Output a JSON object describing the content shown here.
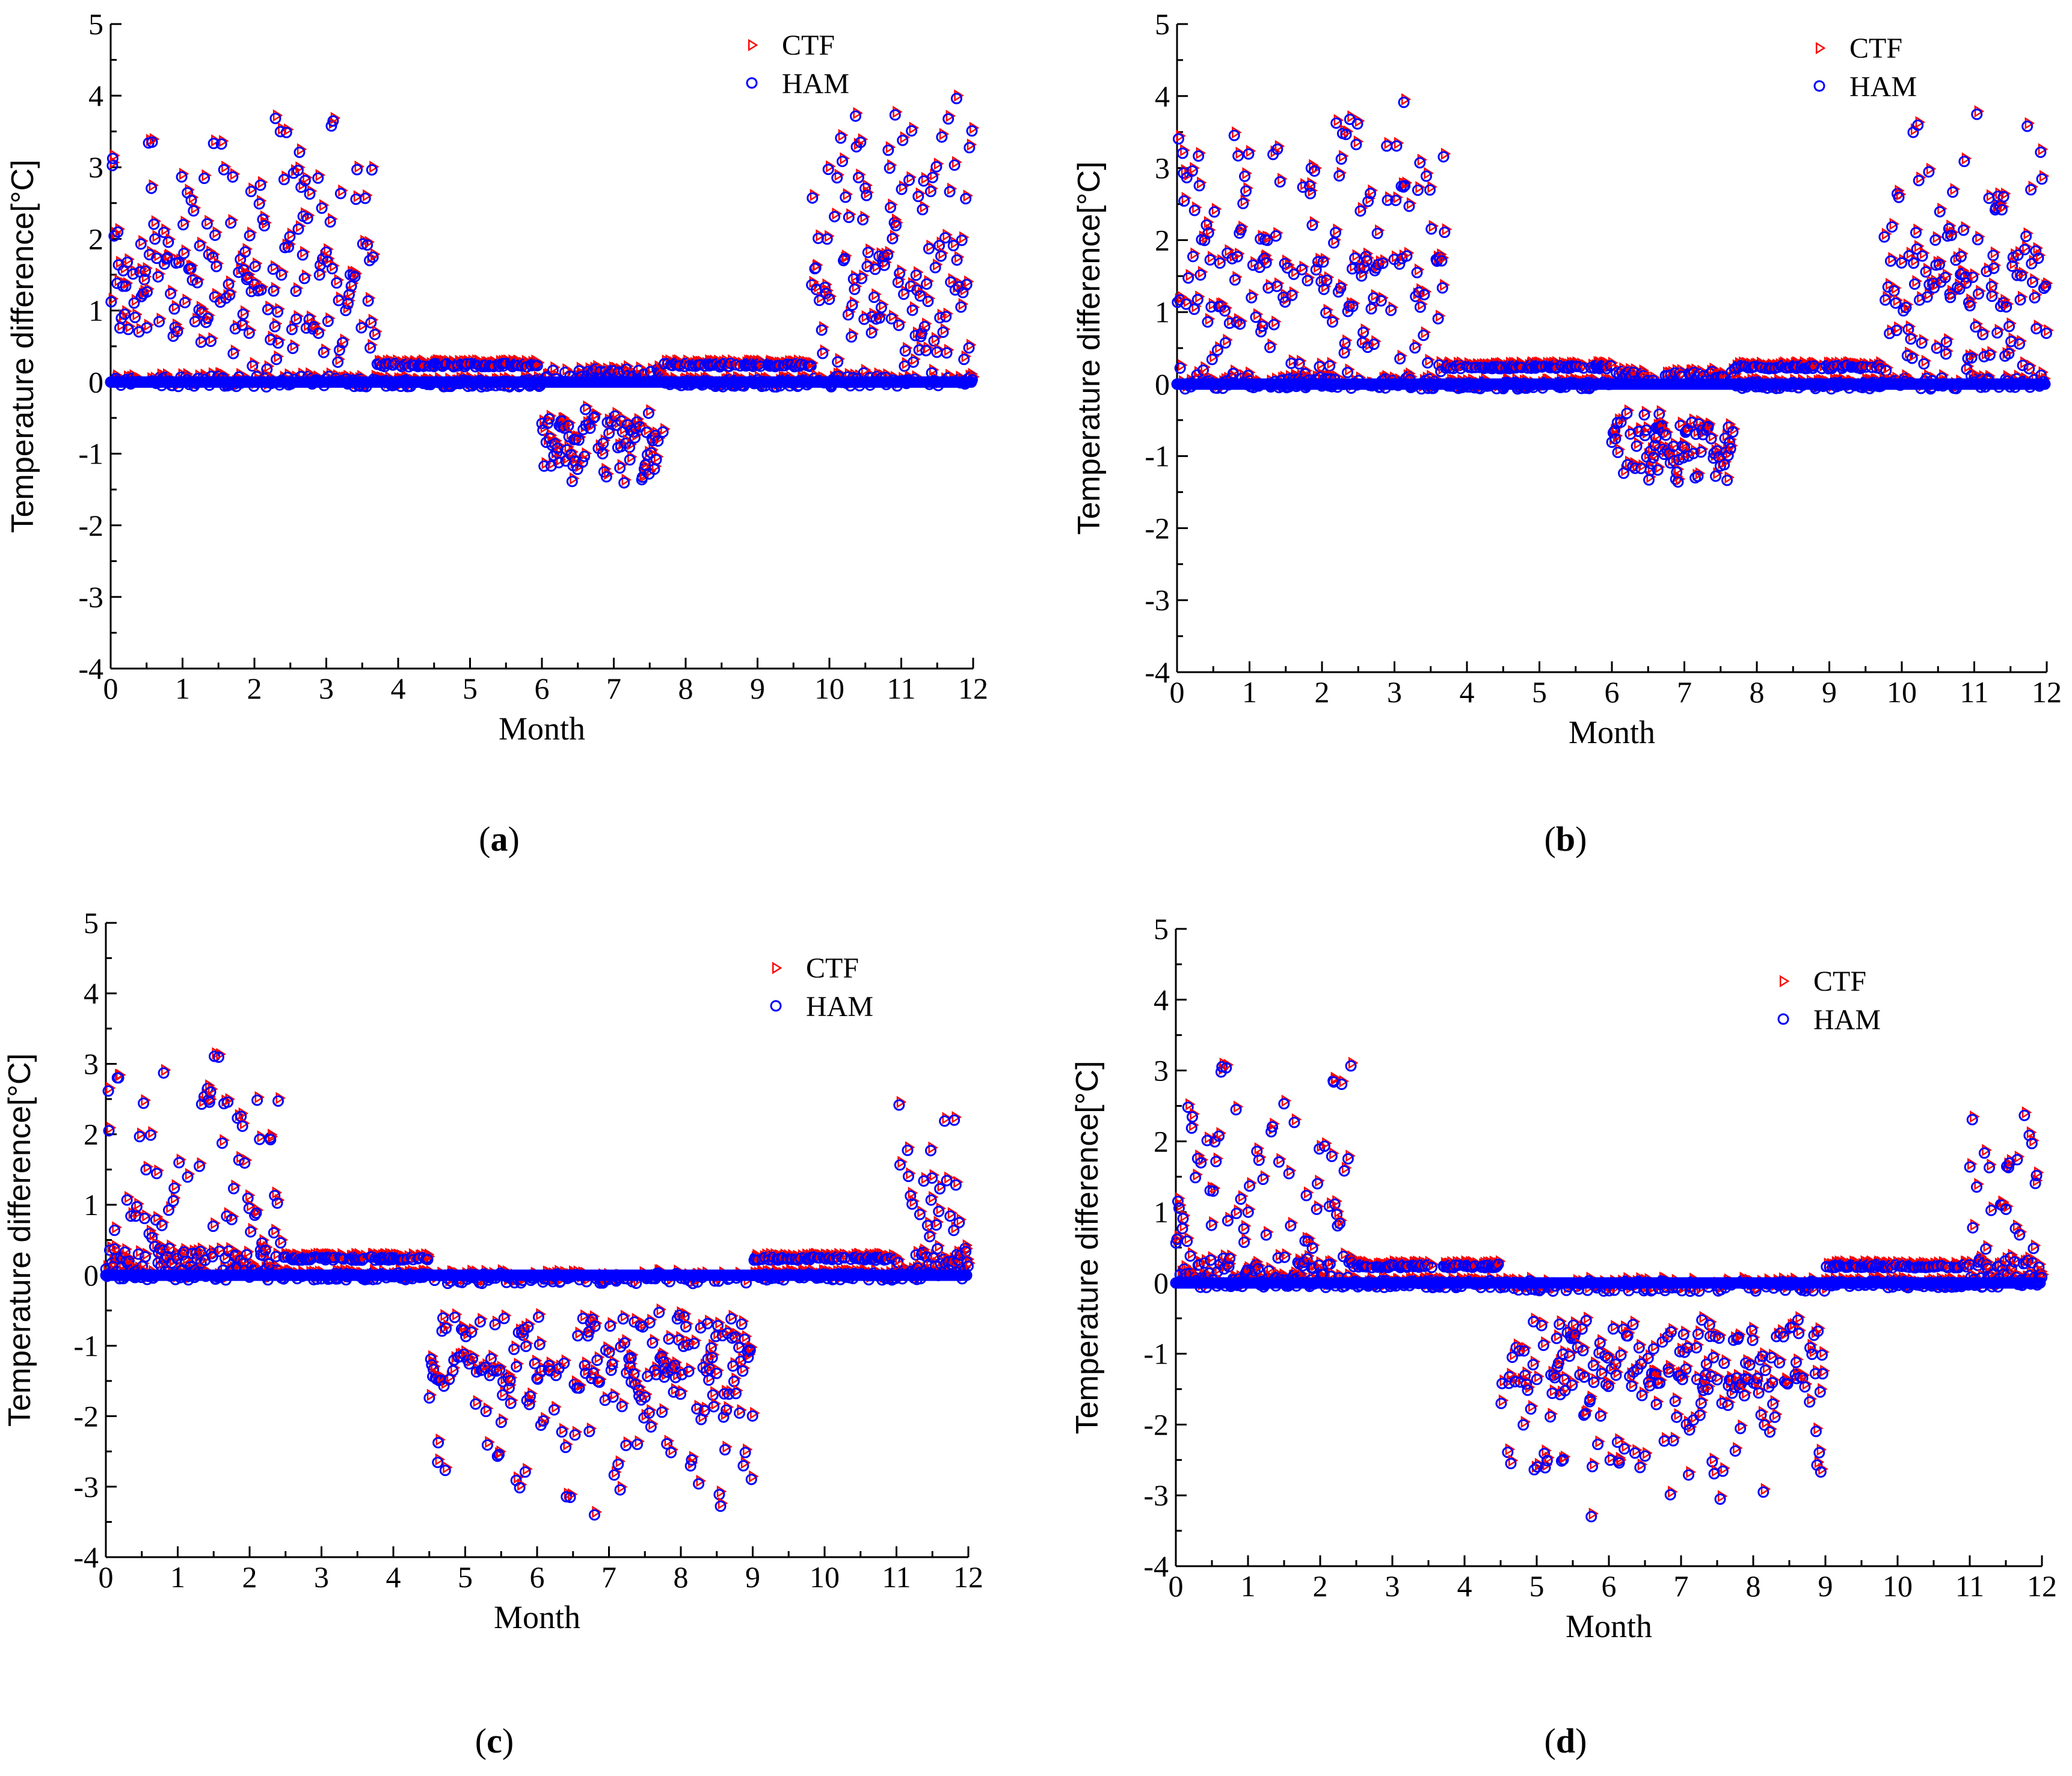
{
  "colors": {
    "ctf": "#ff0000",
    "ham": "#0000ff",
    "axis": "#000000"
  },
  "chart_data": [
    {
      "panel": "a",
      "type": "scatter",
      "xlabel": "Month",
      "ylabel": "Temperature difference[°C]",
      "xlim": [
        0,
        12
      ],
      "ylim": [
        -4,
        5
      ],
      "xticks": [
        "0",
        "1",
        "2",
        "3",
        "4",
        "5",
        "6",
        "7",
        "8",
        "9",
        "10",
        "11",
        "12"
      ],
      "yticks": [
        "-4",
        "-3",
        "-2",
        "-1",
        "0",
        "1",
        "2",
        "3",
        "4",
        "5"
      ],
      "legend": [
        "CTF",
        "HAM"
      ],
      "label_open": "(",
      "label_letter": "a",
      "label_close": ")",
      "segments": [
        {
          "x0": 0.0,
          "x1": 3.7,
          "low": -0.05,
          "high": 4.0,
          "lowerTop": 1.8,
          "dip": null
        },
        {
          "x0": 3.7,
          "x1": 6.0,
          "low": -0.05,
          "high": 0.28,
          "lowerTop": 0.28,
          "dip": null
        },
        {
          "x0": 6.0,
          "x1": 7.7,
          "low": -1.5,
          "high": 0.2,
          "lowerTop": 0.1,
          "dip": -0.85
        },
        {
          "x0": 7.7,
          "x1": 9.75,
          "low": -0.05,
          "high": 0.28,
          "lowerTop": 0.28,
          "dip": null
        },
        {
          "x0": 9.75,
          "x1": 12.0,
          "low": -0.05,
          "high": 4.0,
          "lowerTop": 1.8,
          "dip": null
        }
      ]
    },
    {
      "panel": "b",
      "type": "scatter",
      "xlabel": "Month",
      "ylabel": "Temperature difference[°C]",
      "xlim": [
        0,
        12
      ],
      "ylim": [
        -4,
        5
      ],
      "xticks": [
        "0",
        "1",
        "2",
        "3",
        "4",
        "5",
        "6",
        "7",
        "8",
        "9",
        "10",
        "11",
        "12"
      ],
      "yticks": [
        "-4",
        "-3",
        "-2",
        "-1",
        "0",
        "1",
        "2",
        "3",
        "4",
        "5"
      ],
      "legend": [
        "CTF",
        "HAM"
      ],
      "label_open": "(",
      "label_letter": "b",
      "label_close": ")",
      "segments": [
        {
          "x0": 0.0,
          "x1": 3.7,
          "low": -0.05,
          "high": 4.0,
          "lowerTop": 1.8,
          "dip": null
        },
        {
          "x0": 3.7,
          "x1": 6.0,
          "low": -0.05,
          "high": 0.28,
          "lowerTop": 0.28,
          "dip": null
        },
        {
          "x0": 6.0,
          "x1": 7.7,
          "low": -1.6,
          "high": 0.2,
          "lowerTop": 0.1,
          "dip": -0.85
        },
        {
          "x0": 7.7,
          "x1": 9.75,
          "low": -0.05,
          "high": 0.28,
          "lowerTop": 0.28,
          "dip": null
        },
        {
          "x0": 9.75,
          "x1": 12.0,
          "low": -0.05,
          "high": 4.0,
          "lowerTop": 1.8,
          "dip": null
        }
      ]
    },
    {
      "panel": "c",
      "type": "scatter",
      "xlabel": "Month",
      "ylabel": "Temperature difference[°C]",
      "xlim": [
        0,
        12
      ],
      "ylim": [
        -4,
        5
      ],
      "xticks": [
        "0",
        "1",
        "2",
        "3",
        "4",
        "5",
        "6",
        "7",
        "8",
        "9",
        "10",
        "11",
        "12"
      ],
      "yticks": [
        "-4",
        "-3",
        "-2",
        "-1",
        "0",
        "1",
        "2",
        "3",
        "4",
        "5"
      ],
      "legend": [
        "CTF",
        "HAM"
      ],
      "label_open": "(",
      "label_letter": "c",
      "label_close": ")",
      "segments": [
        {
          "x0": 0.0,
          "x1": 2.45,
          "low": -0.05,
          "high": 3.2,
          "lowerTop": 0.4,
          "dip": null
        },
        {
          "x0": 2.45,
          "x1": 4.5,
          "low": -0.05,
          "high": 0.28,
          "lowerTop": 0.28,
          "dip": null
        },
        {
          "x0": 4.5,
          "x1": 9.0,
          "low": -3.6,
          "high": 0.05,
          "lowerTop": 0.0,
          "dip": -1.0
        },
        {
          "x0": 9.0,
          "x1": 11.0,
          "low": -0.05,
          "high": 0.28,
          "lowerTop": 0.28,
          "dip": null
        },
        {
          "x0": 11.0,
          "x1": 12.0,
          "low": -0.05,
          "high": 2.5,
          "lowerTop": 0.4,
          "dip": null
        }
      ]
    },
    {
      "panel": "d",
      "type": "scatter",
      "xlabel": "Month",
      "ylabel": "Temperature difference[°C]",
      "xlim": [
        0,
        12
      ],
      "ylim": [
        -4,
        5
      ],
      "xticks": [
        "0",
        "1",
        "2",
        "3",
        "4",
        "5",
        "6",
        "7",
        "8",
        "9",
        "10",
        "11",
        "12"
      ],
      "yticks": [
        "-4",
        "-3",
        "-2",
        "-1",
        "0",
        "1",
        "2",
        "3",
        "4",
        "5"
      ],
      "legend": [
        "CTF",
        "HAM"
      ],
      "label_open": "(",
      "label_letter": "d",
      "label_close": ")",
      "segments": [
        {
          "x0": 0.0,
          "x1": 2.45,
          "low": -0.05,
          "high": 3.3,
          "lowerTop": 0.4,
          "dip": null
        },
        {
          "x0": 2.45,
          "x1": 4.5,
          "low": -0.05,
          "high": 0.28,
          "lowerTop": 0.28,
          "dip": null
        },
        {
          "x0": 4.5,
          "x1": 9.0,
          "low": -3.6,
          "high": 0.05,
          "lowerTop": 0.0,
          "dip": -1.0
        },
        {
          "x0": 9.0,
          "x1": 11.0,
          "low": -0.05,
          "high": 0.28,
          "lowerTop": 0.28,
          "dip": null
        },
        {
          "x0": 11.0,
          "x1": 12.0,
          "low": -0.05,
          "high": 2.5,
          "lowerTop": 0.4,
          "dip": null
        }
      ]
    }
  ]
}
